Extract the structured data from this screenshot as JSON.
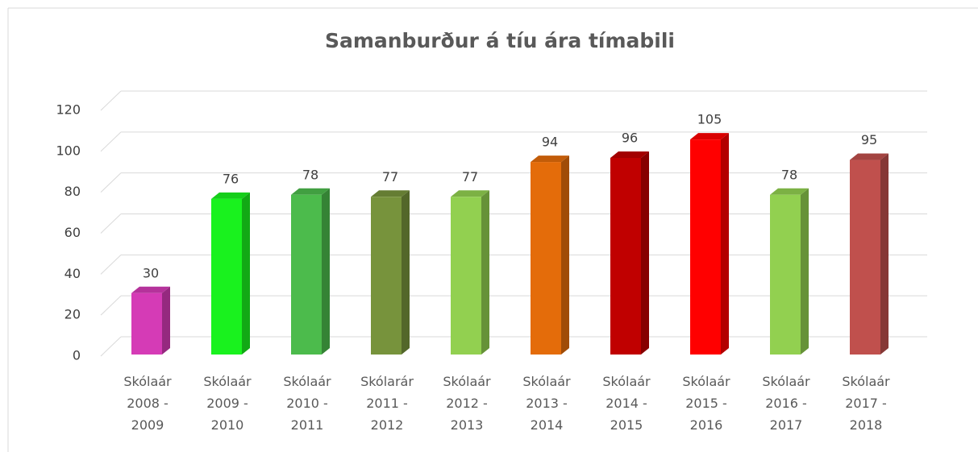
{
  "chart_data": {
    "type": "bar3d",
    "title": "Samanburður á tíu ára tímabili",
    "categories": [
      "Skólaár 2008 - 2009",
      "Skólaár 2009 - 2010",
      "Skólaár 2010 - 2011",
      "Skólarár 2011 - 2012",
      "Skólaár 2012 - 2013",
      "Skólaár 2013 - 2014",
      "Skólaár 2014 - 2015",
      "Skólaár 2015 - 2016",
      "Skólaár 2016 - 2017",
      "Skólaár 2017 - 2018"
    ],
    "values": [
      30,
      76,
      78,
      77,
      77,
      94,
      96,
      105,
      78,
      95
    ],
    "colors": [
      "#d53bb6",
      "#19f21e",
      "#4cbb4c",
      "#77933c",
      "#92d050",
      "#e46c0a",
      "#c00000",
      "#ff0000",
      "#92d050",
      "#c0504d"
    ],
    "ylim": [
      0,
      120
    ],
    "yticks": [
      0,
      20,
      40,
      60,
      80,
      100,
      120
    ],
    "grid": true
  }
}
